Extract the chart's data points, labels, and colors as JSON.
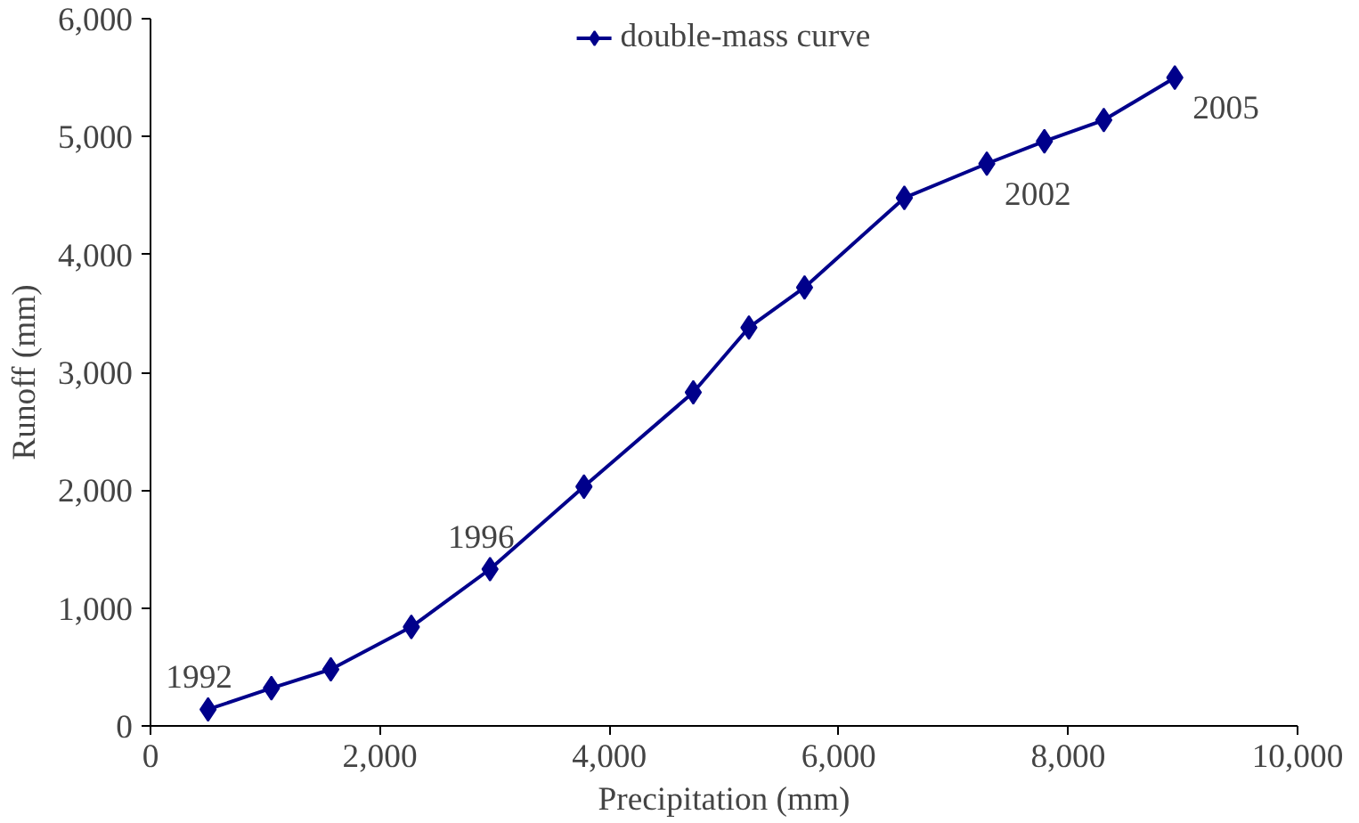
{
  "chart_data": {
    "type": "line",
    "xlabel": "Precipitation (mm)",
    "ylabel": "Runoff (mm)",
    "x": [
      502,
      1054,
      1572,
      2274,
      2960,
      3779,
      4732,
      5217,
      5702,
      6572,
      7291,
      7793,
      8311,
      8930
    ],
    "series": [
      {
        "name": "double-mass curve",
        "color": "#00008b",
        "values": [
          140,
          320,
          480,
          840,
          1330,
          2030,
          2830,
          3380,
          3720,
          4480,
          4770,
          4960,
          5140,
          5500
        ]
      }
    ],
    "xlim": [
      0,
      10000
    ],
    "ylim": [
      0,
      6000
    ],
    "xticks": [
      0,
      {
        "value": 2000,
        "label": "2,000"
      },
      {
        "value": 4000,
        "label": "4,000"
      },
      {
        "value": 6000,
        "label": "6,000"
      },
      {
        "value": 8000,
        "label": "8,000"
      },
      {
        "value": 10000,
        "label": "10,000"
      }
    ],
    "yticks": [
      0,
      {
        "value": 1000,
        "label": "1,000"
      },
      {
        "value": 2000,
        "label": "2,000"
      },
      {
        "value": 3000,
        "label": "3,000"
      },
      {
        "value": 4000,
        "label": "4,000"
      },
      {
        "value": 5000,
        "label": "5,000"
      },
      {
        "value": 6000,
        "label": "6,000"
      }
    ],
    "annotations": [
      {
        "text": "1992",
        "x": 502,
        "y": 140
      },
      {
        "text": "1996",
        "x": 2960,
        "y": 1330
      },
      {
        "text": "2002",
        "x": 7291,
        "y": 4770
      },
      {
        "text": "2005",
        "x": 8930,
        "y": 5500
      }
    ],
    "marker": "diamond",
    "line_style": "solid",
    "legend": "top",
    "grid": false
  }
}
